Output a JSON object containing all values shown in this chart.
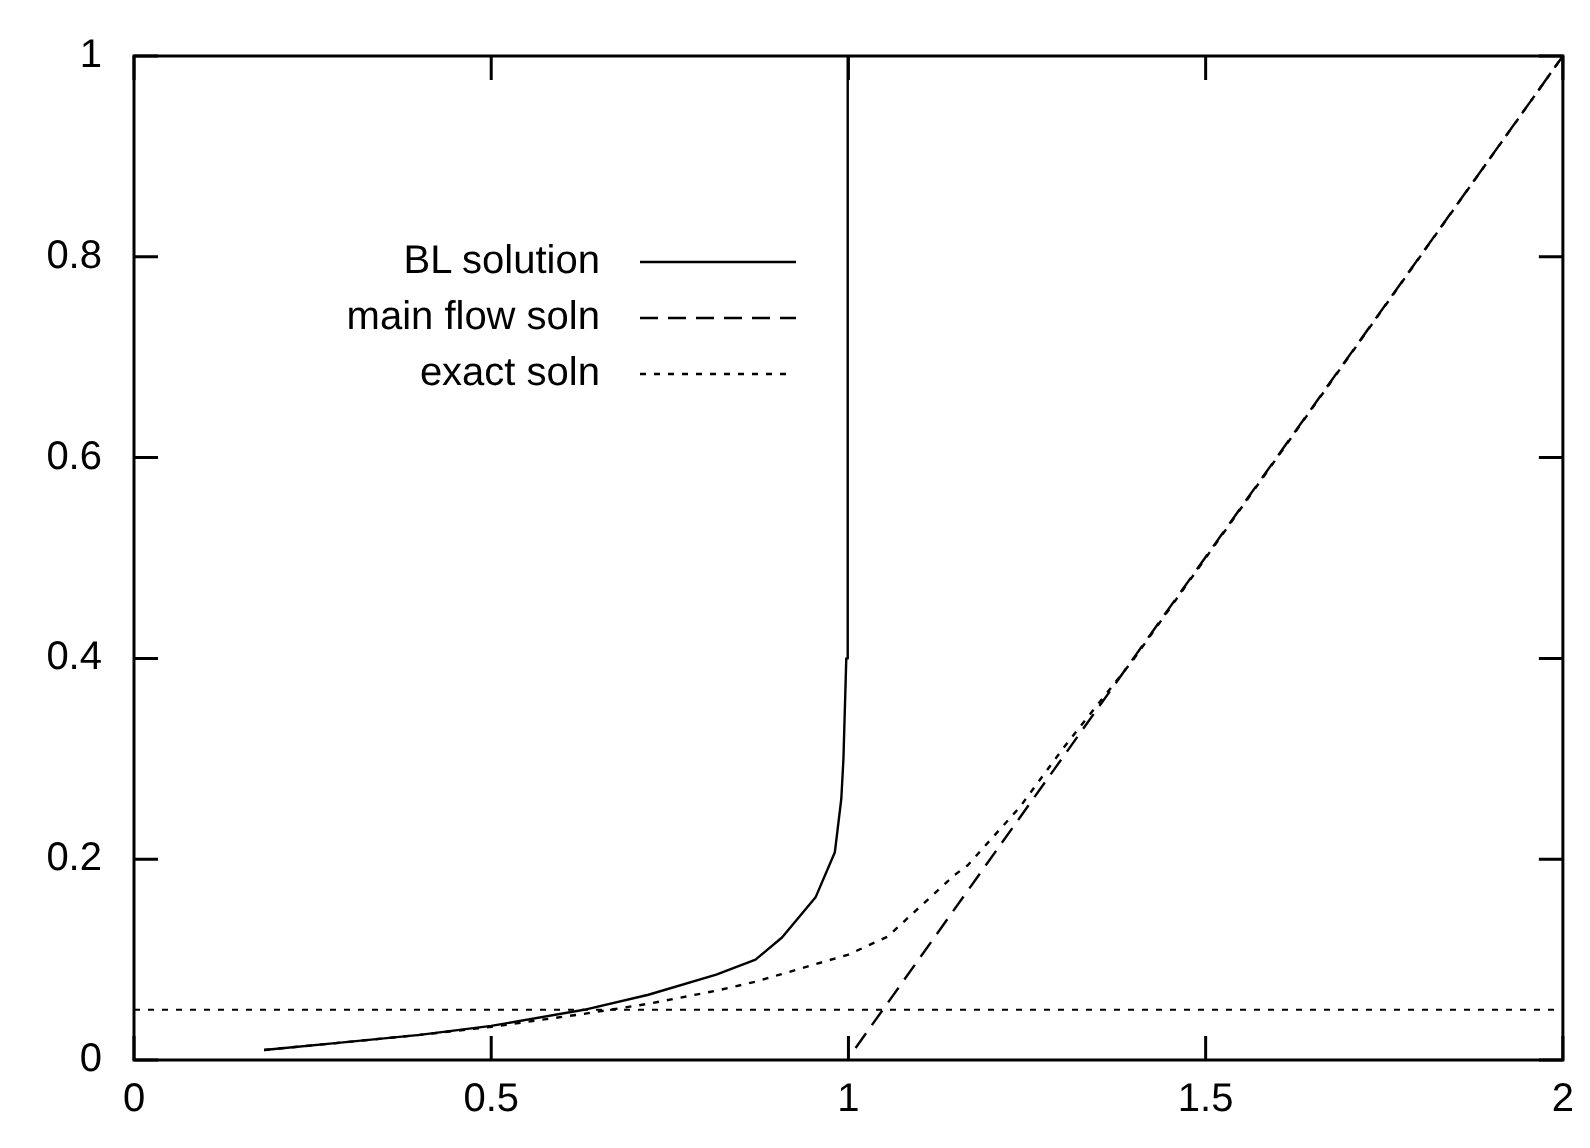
{
  "chart_data": {
    "type": "line",
    "xlim": [
      0,
      2
    ],
    "ylim": [
      0,
      1
    ],
    "xticks": [
      0,
      0.5,
      1,
      1.5,
      2
    ],
    "yticks": [
      0,
      0.2,
      0.4,
      0.6,
      0.8,
      1
    ],
    "grid": false,
    "legend": "top left",
    "marker": "none",
    "series": [
      {
        "name": "BL solution",
        "color": "#000000",
        "line_style": "solid",
        "x": [
          0.182,
          0.3,
          0.4,
          0.5,
          0.63,
          0.72,
          0.815,
          0.87,
          0.907,
          0.954,
          0.981,
          0.99,
          0.993,
          0.997,
          0.999
        ],
        "values": [
          0.01,
          0.018,
          0.025,
          0.034,
          0.05,
          0.065,
          0.085,
          0.1,
          0.122,
          0.162,
          0.207,
          0.26,
          0.3,
          0.4,
          1
        ]
      },
      {
        "name": "main flow soln",
        "color": "#000000",
        "line_style": "dashed",
        "x": [
          1.01,
          2
        ],
        "values": [
          0.012,
          1
        ]
      },
      {
        "name": "exact soln",
        "color": "#000000",
        "line_style": "dotted",
        "x": [
          0.182,
          0.3,
          0.4,
          0.5,
          0.63,
          0.72,
          0.815,
          0.87,
          1.0,
          1.055,
          1.148,
          1.167,
          1.24,
          1.3,
          1.4,
          1.6,
          2
        ],
        "values": [
          0.01,
          0.018,
          0.025,
          0.033,
          0.046,
          0.056,
          0.069,
          0.078,
          0.105,
          0.123,
          0.184,
          0.194,
          0.252,
          0.31,
          0.4,
          0.6,
          1
        ]
      }
    ],
    "ref_lines": [
      {
        "axis": "y",
        "value": 0.05,
        "color": "#000000",
        "line_style": "dotted"
      }
    ]
  }
}
